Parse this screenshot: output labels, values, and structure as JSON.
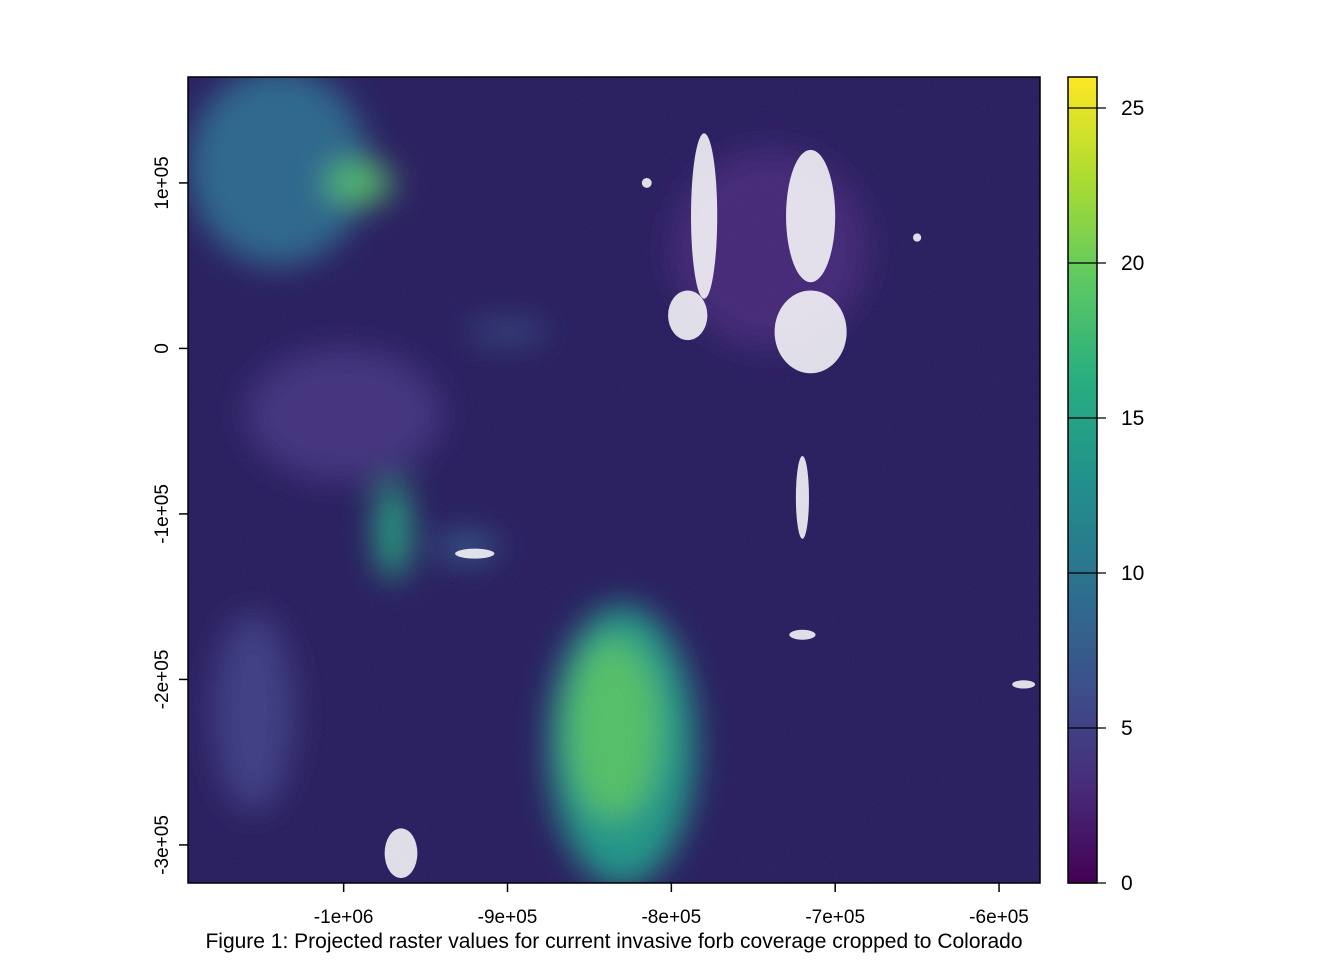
{
  "figure": {
    "caption": "Figure 1: Projected raster values for current invasive forb coverage cropped to Colorado"
  },
  "map": {
    "type": "raster",
    "x_axis": {
      "range": [
        -1095000,
        -575000
      ],
      "ticks": [
        {
          "value": -1000000,
          "label": "-1e+06"
        },
        {
          "value": -900000,
          "label": "-9e+05"
        },
        {
          "value": -800000,
          "label": "-8e+05"
        },
        {
          "value": -700000,
          "label": "-7e+05"
        },
        {
          "value": -600000,
          "label": "-6e+05"
        }
      ]
    },
    "y_axis": {
      "range": [
        -323000,
        164000
      ],
      "ticks": [
        {
          "value": 100000,
          "label": "1e+05"
        },
        {
          "value": 0,
          "label": "0"
        },
        {
          "value": -100000,
          "label": "-1e+05"
        },
        {
          "value": -200000,
          "label": "-2e+05"
        },
        {
          "value": -300000,
          "label": "-3e+05"
        }
      ]
    },
    "raster_background_color": "#2a1f5f",
    "no_data_color": "#ffffff",
    "highlight_regions": [
      {
        "x": -1040000,
        "y": 110000,
        "rx": 55000,
        "ry": 60000,
        "value": 9
      },
      {
        "x": -990000,
        "y": 100000,
        "rx": 20000,
        "ry": 12000,
        "value": 19
      },
      {
        "x": -970000,
        "y": -110000,
        "rx": 10000,
        "ry": 30000,
        "value": 16
      },
      {
        "x": -830000,
        "y": -240000,
        "rx": 45000,
        "ry": 85000,
        "value": 14
      },
      {
        "x": -835000,
        "y": -230000,
        "rx": 28000,
        "ry": 55000,
        "value": 19
      },
      {
        "x": -925000,
        "y": -120000,
        "rx": 20000,
        "ry": 8000,
        "value": 8
      },
      {
        "x": -900000,
        "y": 10000,
        "rx": 25000,
        "ry": 5000,
        "value": 7
      },
      {
        "x": -1055000,
        "y": -220000,
        "rx": 25000,
        "ry": 60000,
        "value": 5
      },
      {
        "x": -740000,
        "y": 60000,
        "rx": 60000,
        "ry": 60000,
        "value": 3
      },
      {
        "x": -1000000,
        "y": -40000,
        "rx": 60000,
        "ry": 40000,
        "value": 4
      }
    ],
    "no_data_patches": [
      {
        "x": -780000,
        "y": 80000,
        "rx": 8000,
        "ry": 50000
      },
      {
        "x": -790000,
        "y": 20000,
        "rx": 12000,
        "ry": 15000
      },
      {
        "x": -715000,
        "y": 80000,
        "rx": 15000,
        "ry": 40000
      },
      {
        "x": -715000,
        "y": 10000,
        "rx": 22000,
        "ry": 25000
      },
      {
        "x": -720000,
        "y": -90000,
        "rx": 4000,
        "ry": 25000
      },
      {
        "x": -920000,
        "y": -124000,
        "rx": 12000,
        "ry": 3000
      },
      {
        "x": -720000,
        "y": -173000,
        "rx": 8000,
        "ry": 3000
      },
      {
        "x": -585000,
        "y": -203000,
        "rx": 7000,
        "ry": 2500
      },
      {
        "x": -965000,
        "y": -305000,
        "rx": 10000,
        "ry": 15000
      },
      {
        "x": -815000,
        "y": 100000,
        "rx": 3000,
        "ry": 3000
      },
      {
        "x": -650000,
        "y": 67000,
        "rx": 2500,
        "ry": 2500
      }
    ]
  },
  "legend": {
    "min": 0,
    "max": 26,
    "ticks": [
      {
        "value": 0,
        "label": "0"
      },
      {
        "value": 5,
        "label": "5"
      },
      {
        "value": 10,
        "label": "10"
      },
      {
        "value": 15,
        "label": "15"
      },
      {
        "value": 20,
        "label": "20"
      },
      {
        "value": 25,
        "label": "25"
      }
    ],
    "colors": [
      "#440154",
      "#472d7b",
      "#3b528b",
      "#2c728e",
      "#21918c",
      "#28ae80",
      "#5ec962",
      "#addc30",
      "#fde725"
    ]
  }
}
